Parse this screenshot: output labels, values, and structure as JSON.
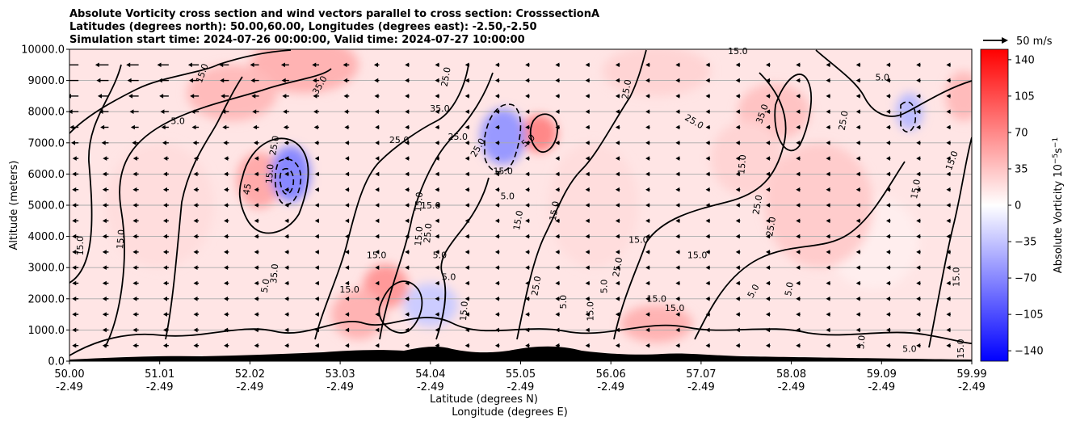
{
  "title": {
    "line1": "Absolute Vorticity cross section and wind vectors parallel to cross section: CrosssectionA",
    "line2": "Latitudes (degrees north): 50.00,60.00, Longitudes (degrees east): -2.50,-2.50",
    "line3": "Simulation start time: 2024-07-26 00:00:00, Valid time: 2024-07-27 10:00:00"
  },
  "quiver_key": {
    "label": "50 m/s"
  },
  "colorbar": {
    "label": "Absolute Vorticity 10",
    "label_exponent": "−5",
    "label_unit": "s",
    "label_unit_exponent": "−1",
    "range": [
      -150,
      150
    ],
    "ticks": [
      "140",
      "105",
      "70",
      "35",
      "0",
      "−35",
      "−70",
      "−105",
      "−140"
    ],
    "tick_values": [
      140,
      105,
      70,
      35,
      0,
      -35,
      -70,
      -105,
      -140
    ],
    "colormap": "bwr",
    "low_color": "#0000ff",
    "mid_color": "#ffffff",
    "high_color": "#ff0000"
  },
  "chart_data": {
    "type": "heatmap",
    "description_fields": "filled contour of absolute vorticity with black contour lines and wind vector arrows",
    "ylabel": "Altitude (meters)",
    "xlabel_lat": "Latitude (degrees N)",
    "xlabel_lon": "Longitude (degrees E)",
    "ylim": [
      0,
      10000
    ],
    "y_ticks": [
      "0.0",
      "1000.0",
      "2000.0",
      "3000.0",
      "4000.0",
      "5000.0",
      "6000.0",
      "7000.0",
      "8000.0",
      "9000.0",
      "10000.0"
    ],
    "y_tick_values": [
      0,
      1000,
      2000,
      3000,
      4000,
      5000,
      6000,
      7000,
      8000,
      9000,
      10000
    ],
    "x_ticks_lat": [
      "50.00",
      "51.01",
      "52.02",
      "53.03",
      "54.04",
      "55.05",
      "56.06",
      "57.07",
      "58.08",
      "59.09",
      "59.99"
    ],
    "x_ticks_lon": [
      "-2.49",
      "-2.49",
      "-2.49",
      "-2.49",
      "-2.49",
      "-2.49",
      "-2.49",
      "-2.49",
      "-2.49",
      "-2.49",
      "-2.49"
    ],
    "xlim": [
      50.0,
      59.99
    ],
    "grid": "horizontal",
    "contour_labels": [
      {
        "text": "15.0",
        "lat": 51.5,
        "alt": 9200,
        "rot": -70
      },
      {
        "text": "35.0",
        "lat": 52.8,
        "alt": 8800,
        "rot": -60
      },
      {
        "text": "25.0",
        "lat": 52.3,
        "alt": 6900,
        "rot": -80
      },
      {
        "text": "45",
        "lat": 52.0,
        "alt": 5500,
        "rot": -80
      },
      {
        "text": "15.0",
        "lat": 52.25,
        "alt": 6000,
        "rot": -85
      },
      {
        "text": "5.0",
        "lat": 51.2,
        "alt": 7600,
        "rot": 0
      },
      {
        "text": "15.0",
        "lat": 50.6,
        "alt": 3900,
        "rot": -85
      },
      {
        "text": "15.0",
        "lat": 50.15,
        "alt": 3700,
        "rot": -90
      },
      {
        "text": "25.0",
        "lat": 54.2,
        "alt": 9100,
        "rot": -80
      },
      {
        "text": "35.0",
        "lat": 54.1,
        "alt": 8000,
        "rot": 0
      },
      {
        "text": "25.0",
        "lat": 54.3,
        "alt": 7100,
        "rot": 0
      },
      {
        "text": "25.0",
        "lat": 53.65,
        "alt": 7000,
        "rot": 0
      },
      {
        "text": "15.0",
        "lat": 54.8,
        "alt": 6000,
        "rot": 0
      },
      {
        "text": "15.0",
        "lat": 53.9,
        "alt": 5100,
        "rot": -85
      },
      {
        "text": "15.0",
        "lat": 54.0,
        "alt": 4900,
        "rot": 0
      },
      {
        "text": "5.0",
        "lat": 54.85,
        "alt": 5200,
        "rot": 0
      },
      {
        "text": "25.0",
        "lat": 54.55,
        "alt": 6800,
        "rot": -60
      },
      {
        "text": "5.0",
        "lat": 55.1,
        "alt": 7000,
        "rot": -40
      },
      {
        "text": "15.0",
        "lat": 55.4,
        "alt": 4800,
        "rot": -80
      },
      {
        "text": "15.0",
        "lat": 55.0,
        "alt": 4500,
        "rot": -80
      },
      {
        "text": "25.0",
        "lat": 56.2,
        "alt": 8700,
        "rot": -80
      },
      {
        "text": "25.0",
        "lat": 56.9,
        "alt": 7600,
        "rot": 30
      },
      {
        "text": "15.0",
        "lat": 56.3,
        "alt": 3800,
        "rot": 0
      },
      {
        "text": "15.0",
        "lat": 56.95,
        "alt": 3300,
        "rot": 0
      },
      {
        "text": "25.0",
        "lat": 57.65,
        "alt": 5000,
        "rot": -80
      },
      {
        "text": "25.0",
        "lat": 57.8,
        "alt": 4300,
        "rot": -80
      },
      {
        "text": "15.0",
        "lat": 57.48,
        "alt": 6300,
        "rot": -85
      },
      {
        "text": "15.0",
        "lat": 57.4,
        "alt": 9850,
        "rot": 0
      },
      {
        "text": "35.0",
        "lat": 57.7,
        "alt": 7900,
        "rot": -70
      },
      {
        "text": "25.0",
        "lat": 58.6,
        "alt": 7700,
        "rot": -80
      },
      {
        "text": "5.0",
        "lat": 59.0,
        "alt": 9000,
        "rot": 0
      },
      {
        "text": "15.0",
        "lat": 59.8,
        "alt": 6400,
        "rot": -70
      },
      {
        "text": "15.0",
        "lat": 59.4,
        "alt": 5500,
        "rot": -80
      },
      {
        "text": "15.0",
        "lat": 59.85,
        "alt": 2700,
        "rot": -90
      },
      {
        "text": "15.0",
        "lat": 56.5,
        "alt": 1900,
        "rot": 0
      },
      {
        "text": "15.0",
        "lat": 56.7,
        "alt": 1600,
        "rot": 0
      },
      {
        "text": "5.0",
        "lat": 58.0,
        "alt": 2300,
        "rot": -80
      },
      {
        "text": "5.0",
        "lat": 57.6,
        "alt": 2200,
        "rot": -60
      },
      {
        "text": "5.0",
        "lat": 55.95,
        "alt": 2400,
        "rot": -90
      },
      {
        "text": "25.0",
        "lat": 56.1,
        "alt": 3000,
        "rot": -80
      },
      {
        "text": "15.0",
        "lat": 53.4,
        "alt": 3300,
        "rot": 0
      },
      {
        "text": "5.0",
        "lat": 54.1,
        "alt": 3300,
        "rot": 0
      },
      {
        "text": "5.0",
        "lat": 54.2,
        "alt": 2600,
        "rot": 0
      },
      {
        "text": "15.0",
        "lat": 53.9,
        "alt": 4000,
        "rot": -85
      },
      {
        "text": "25.0",
        "lat": 54.0,
        "alt": 4100,
        "rot": -85
      },
      {
        "text": "5.0",
        "lat": 52.2,
        "alt": 2400,
        "rot": -80
      },
      {
        "text": "35.0",
        "lat": 52.3,
        "alt": 2800,
        "rot": -85
      },
      {
        "text": "15.0",
        "lat": 53.1,
        "alt": 2200,
        "rot": 0
      },
      {
        "text": "5.0",
        "lat": 55.5,
        "alt": 1900,
        "rot": -90
      },
      {
        "text": "25.0",
        "lat": 55.2,
        "alt": 2400,
        "rot": -80
      },
      {
        "text": "15.0",
        "lat": 54.4,
        "alt": 1600,
        "rot": -85
      },
      {
        "text": "15.0",
        "lat": 55.8,
        "alt": 1600,
        "rot": -90
      },
      {
        "text": "5.0",
        "lat": 58.8,
        "alt": 600,
        "rot": -85
      },
      {
        "text": "15.0",
        "lat": 59.9,
        "alt": 400,
        "rot": -90
      },
      {
        "text": "5.0",
        "lat": 59.3,
        "alt": 300,
        "rot": 0
      }
    ],
    "vorticity_blobs": [
      {
        "lat": 52.6,
        "alt": 9500,
        "v": 45,
        "rl": 0.6,
        "ra": 900
      },
      {
        "lat": 51.8,
        "alt": 8600,
        "v": 40,
        "rl": 0.5,
        "ra": 900
      },
      {
        "lat": 52.1,
        "alt": 5800,
        "v": 50,
        "rl": 0.25,
        "ra": 900
      },
      {
        "lat": 52.45,
        "alt": 6000,
        "v": -70,
        "rl": 0.22,
        "ra": 900
      },
      {
        "lat": 55.2,
        "alt": 7300,
        "v": 70,
        "rl": 0.2,
        "ra": 600
      },
      {
        "lat": 54.8,
        "alt": 7200,
        "v": -60,
        "rl": 0.25,
        "ra": 900
      },
      {
        "lat": 53.5,
        "alt": 2400,
        "v": 60,
        "rl": 0.25,
        "ra": 700
      },
      {
        "lat": 53.2,
        "alt": 1500,
        "v": 45,
        "rl": 0.3,
        "ra": 800
      },
      {
        "lat": 54.0,
        "alt": 1800,
        "v": -30,
        "rl": 0.3,
        "ra": 700
      },
      {
        "lat": 57.8,
        "alt": 8000,
        "v": 35,
        "rl": 0.4,
        "ra": 900
      },
      {
        "lat": 59.3,
        "alt": 8000,
        "v": -40,
        "rl": 0.15,
        "ra": 600
      },
      {
        "lat": 59.9,
        "alt": 8500,
        "v": 40,
        "rl": 0.2,
        "ra": 800
      },
      {
        "lat": 56.5,
        "alt": 9300,
        "v": 25,
        "rl": 0.6,
        "ra": 800
      },
      {
        "lat": 57.5,
        "alt": 6500,
        "v": 25,
        "rl": 0.4,
        "ra": 1200
      },
      {
        "lat": 58.9,
        "alt": 3800,
        "v": 10,
        "rl": 0.5,
        "ra": 1500
      },
      {
        "lat": 56.5,
        "alt": 1200,
        "v": 45,
        "rl": 0.4,
        "ra": 600
      },
      {
        "lat": 51.0,
        "alt": 5000,
        "v": 20,
        "rl": 0.6,
        "ra": 2000
      },
      {
        "lat": 58.3,
        "alt": 5000,
        "v": 30,
        "rl": 0.6,
        "ra": 2000
      },
      {
        "lat": 55.8,
        "alt": 5000,
        "v": 20,
        "rl": 0.5,
        "ra": 2000
      }
    ],
    "background_vorticity": 15
  }
}
